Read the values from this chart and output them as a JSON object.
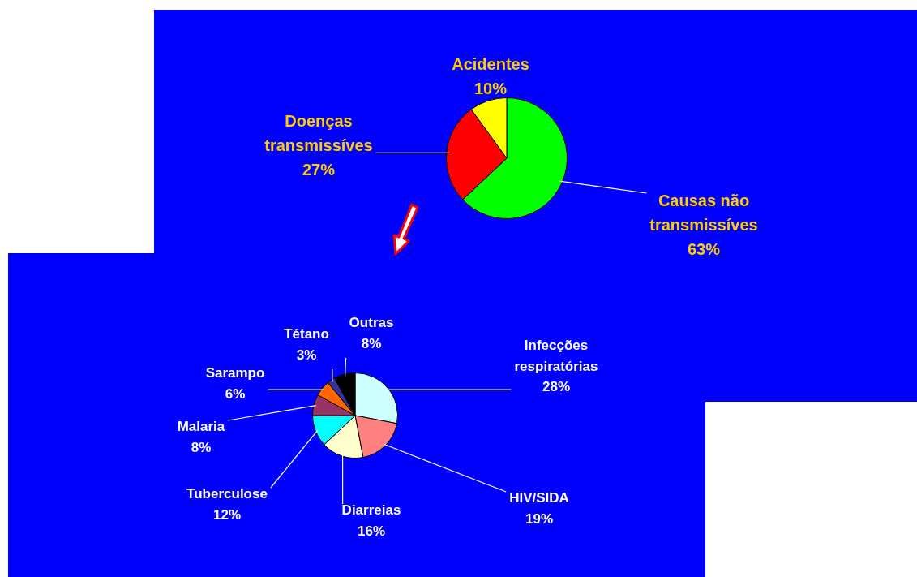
{
  "chart_data": [
    {
      "type": "pie",
      "categories": [
        "Causas não transmissíves",
        "Doenças transmissíves",
        "Acidentes"
      ],
      "values": [
        63,
        27,
        10
      ],
      "colors": [
        "#00ff00",
        "#ff0000",
        "#ffff00"
      ],
      "value_labels": [
        "63%",
        "27%",
        "10%"
      ]
    },
    {
      "type": "pie",
      "categories": [
        "Infecções respiratórias",
        "HIV/SIDA",
        "Diarreias",
        "Tuberculose",
        "Malaria",
        "Sarampo",
        "Tétano",
        "Outras"
      ],
      "values": [
        28,
        19,
        16,
        12,
        8,
        6,
        3,
        8
      ],
      "colors": [
        "#ccffff",
        "#ff8080",
        "#ffffcc",
        "#00ffff",
        "#993366",
        "#ff6600",
        "#333399",
        "#000000"
      ],
      "value_labels": [
        "28%",
        "19%",
        "16%",
        "12%",
        "8%",
        "6%",
        "3%",
        "8%"
      ]
    }
  ]
}
